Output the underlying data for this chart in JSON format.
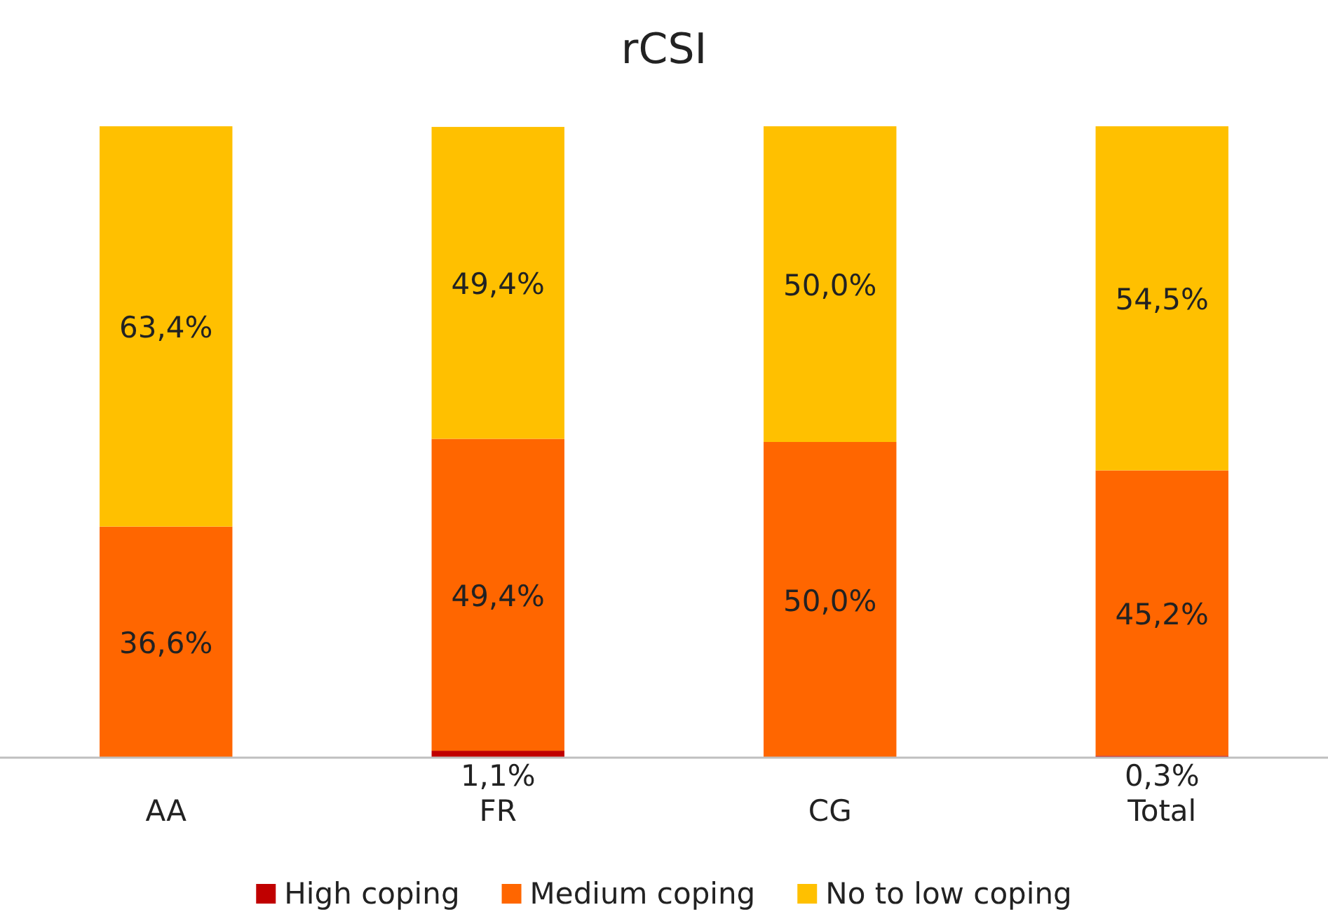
{
  "chart_data": {
    "type": "bar",
    "title": "rCSI",
    "categories": [
      "AA",
      "FR",
      "CG",
      "Total"
    ],
    "stacked": true,
    "ylim": [
      0,
      100
    ],
    "tick_labels": "x",
    "legend": "bottom",
    "series": [
      {
        "name": "High coping",
        "color": "#c00000",
        "values": [
          0,
          1.1,
          0,
          0.3
        ],
        "value_labels": [
          null,
          "1,1%",
          null,
          "0,3%"
        ]
      },
      {
        "name": "Medium coping",
        "color": "#ff6600",
        "values": [
          36.6,
          49.4,
          50.0,
          45.2
        ],
        "value_labels": [
          "36,6%",
          "49,4%",
          "50,0%",
          "45,2%"
        ]
      },
      {
        "name": "No to low coping",
        "color": "#ffc000",
        "values": [
          63.4,
          49.4,
          50.0,
          54.5
        ],
        "value_labels": [
          "63,4%",
          "49,4%",
          "50,0%",
          "54,5%"
        ]
      }
    ]
  }
}
